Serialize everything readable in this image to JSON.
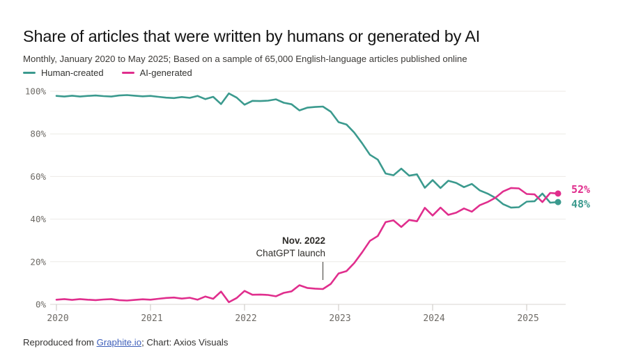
{
  "header": {
    "title": "Share of articles that were written by humans or generated by AI",
    "subtitle": "Monthly, January 2020 to May 2025; Based on a sample of 65,000 English-language articles published online"
  },
  "legend": [
    {
      "label": "Human-created",
      "color": "#3b9a8e"
    },
    {
      "label": "AI-generated",
      "color": "#e02e8d"
    }
  ],
  "chart_data": {
    "type": "line",
    "title": "Share of articles that were written by humans or generated by AI",
    "x_unit": "month",
    "x_range": [
      "2020-01",
      "2025-05"
    ],
    "x_tick_labels": [
      "2020",
      "2021",
      "2022",
      "2023",
      "2024",
      "2025"
    ],
    "y_tick_labels": [
      "0%",
      "20%",
      "40%",
      "60%",
      "80%",
      "100%"
    ],
    "ylim": [
      0,
      100
    ],
    "grid": "horizontal",
    "legend_position": "top-left",
    "series": [
      {
        "name": "Human-created",
        "color": "#3b9a8e",
        "end_label": "48%",
        "values": [
          97.8,
          97.5,
          97.9,
          97.5,
          97.8,
          98.0,
          97.7,
          97.5,
          98.0,
          98.2,
          97.9,
          97.6,
          97.8,
          97.4,
          97.0,
          96.8,
          97.3,
          96.9,
          97.8,
          96.3,
          97.4,
          94.0,
          99.0,
          97.0,
          93.7,
          95.5,
          95.4,
          95.6,
          96.2,
          94.6,
          93.9,
          91.0,
          92.3,
          92.6,
          92.8,
          90.4,
          85.5,
          84.4,
          80.6,
          75.6,
          70.2,
          67.9,
          61.4,
          60.6,
          63.7,
          60.4,
          61.0,
          54.7,
          58.3,
          54.6,
          58.0,
          57.0,
          55.0,
          56.5,
          53.5,
          52.0,
          50.0,
          47.0,
          45.4,
          45.6,
          48.2,
          48.4,
          52.0,
          47.7,
          48.0
        ]
      },
      {
        "name": "AI-generated",
        "color": "#e02e8d",
        "end_label": "52%",
        "values": [
          2.2,
          2.5,
          2.1,
          2.5,
          2.2,
          2.0,
          2.3,
          2.5,
          2.0,
          1.8,
          2.1,
          2.4,
          2.2,
          2.6,
          3.0,
          3.2,
          2.7,
          3.1,
          2.2,
          3.7,
          2.6,
          6.0,
          1.0,
          3.0,
          6.3,
          4.5,
          4.6,
          4.4,
          3.8,
          5.4,
          6.1,
          9.0,
          7.7,
          7.4,
          7.2,
          9.6,
          14.5,
          15.6,
          19.4,
          24.4,
          29.8,
          32.1,
          38.6,
          39.4,
          36.3,
          39.6,
          39.0,
          45.3,
          41.7,
          45.4,
          42.0,
          43.0,
          45.0,
          43.5,
          46.5,
          48.0,
          50.0,
          53.0,
          54.6,
          54.4,
          51.8,
          51.6,
          48.0,
          52.3,
          52.0
        ]
      }
    ],
    "annotation": {
      "title": "Nov. 2022",
      "label": "ChatGPT launch",
      "month_index": 34
    }
  },
  "footer": {
    "prefix": "Reproduced from ",
    "link_label": "Graphite.io",
    "suffix": "; Chart: Axios Visuals"
  }
}
